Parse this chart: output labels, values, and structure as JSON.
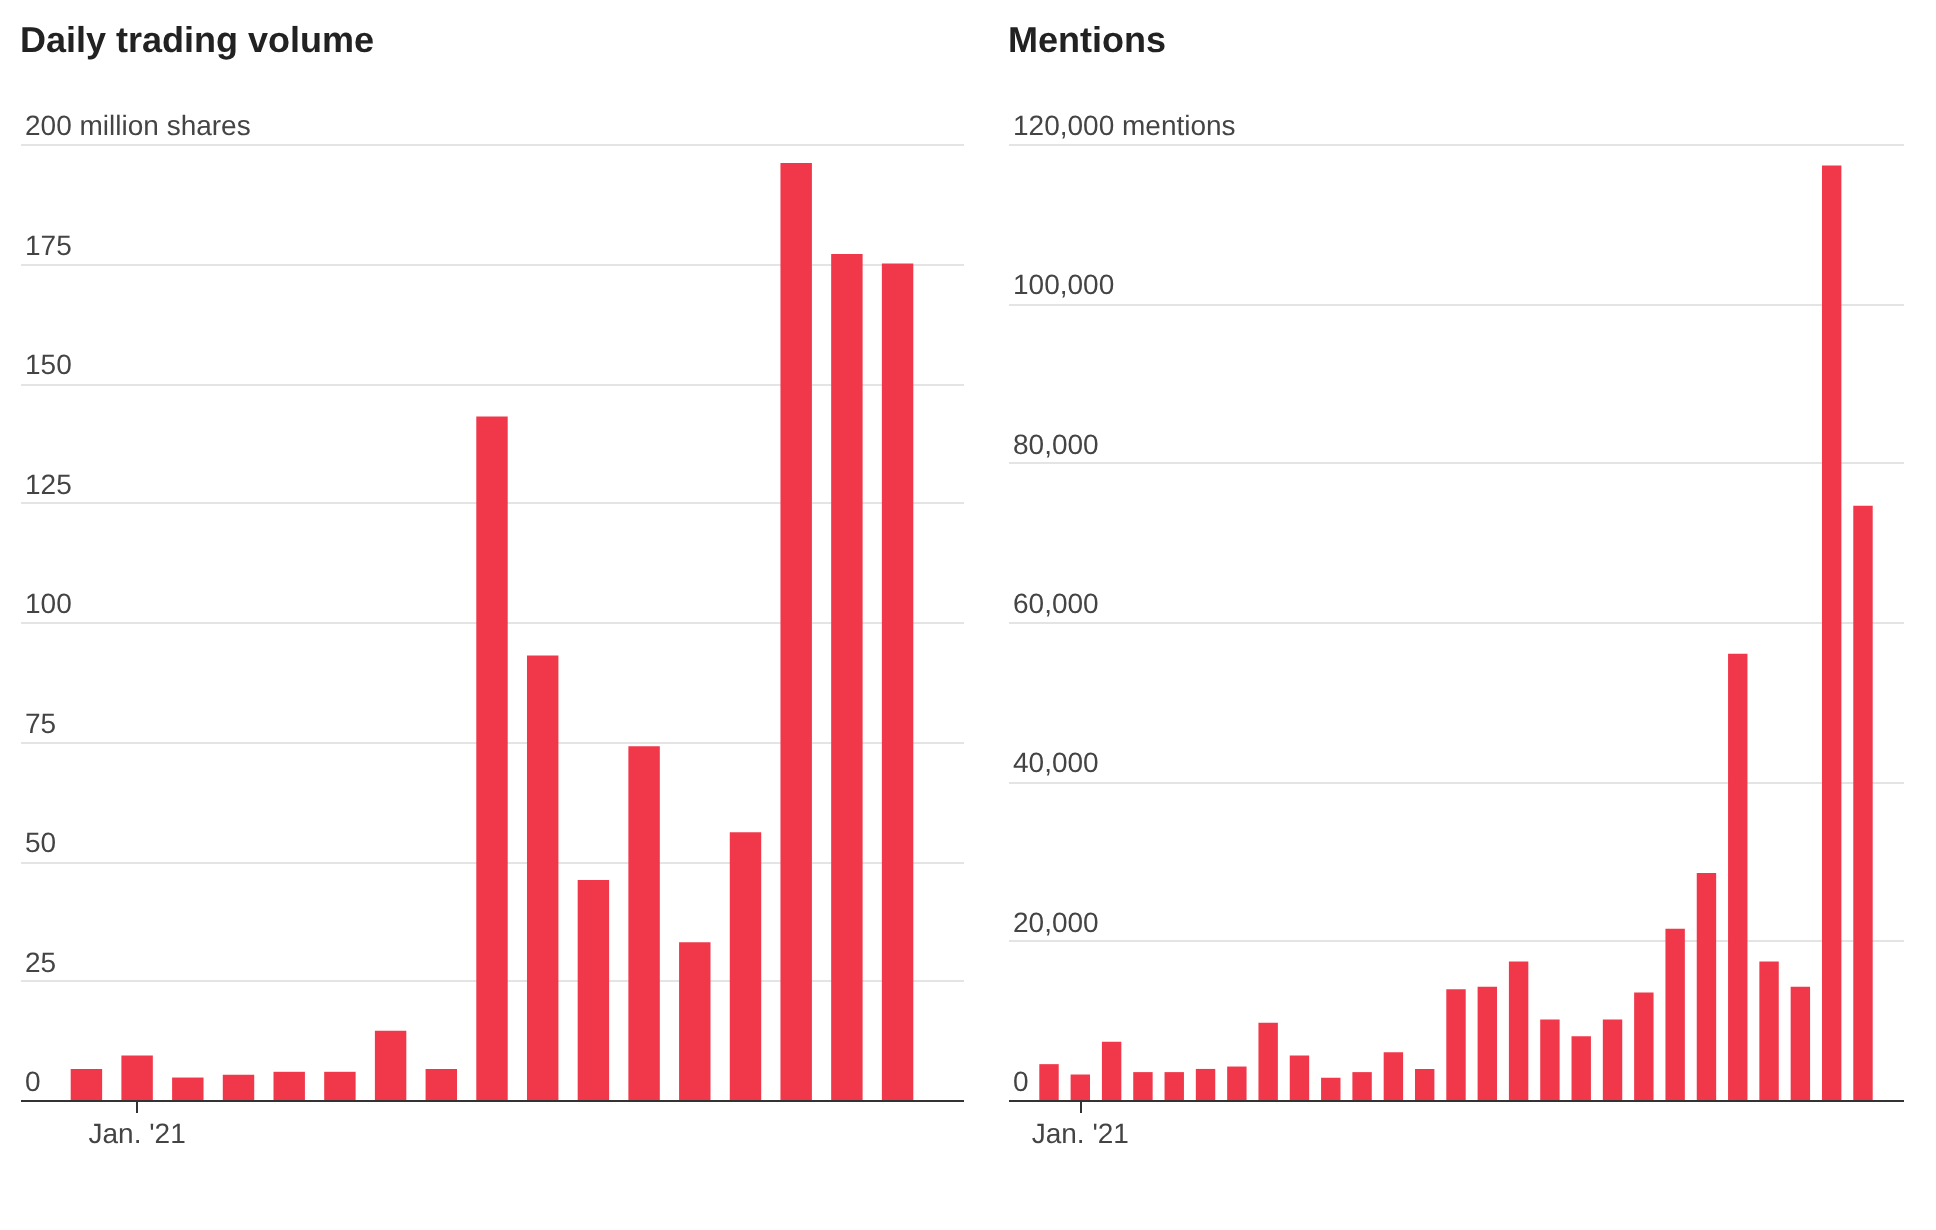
{
  "chart_data": [
    {
      "type": "bar",
      "title": "Daily trading volume",
      "categories": [
        null,
        "Jan. '21",
        null,
        null,
        null,
        null,
        null,
        null,
        null,
        null,
        null,
        null,
        null,
        null,
        null,
        null,
        null
      ],
      "values": [
        6.5,
        9.3,
        4.7,
        5.3,
        5.9,
        5.9,
        14.5,
        6.5,
        143,
        93,
        46,
        74,
        33,
        56,
        196,
        177,
        175
      ],
      "color": "#f0384a",
      "ylim": [
        0,
        200
      ],
      "yticks": [
        0,
        25,
        50,
        75,
        100,
        125,
        150,
        175,
        {
          "value": 200,
          "label": "200 million shares"
        }
      ],
      "grid": "y"
    },
    {
      "type": "bar",
      "title": "Mentions",
      "categories": [
        null,
        "Jan. '21",
        null,
        null,
        null,
        null,
        null,
        null,
        null,
        null,
        null,
        null,
        null,
        null,
        null,
        null,
        null,
        null,
        null,
        null,
        null,
        null,
        null,
        null,
        null,
        null,
        null
      ],
      "values": [
        4500,
        3200,
        7300,
        3500,
        3500,
        3900,
        4200,
        9700,
        5600,
        2800,
        3500,
        6000,
        3900,
        13900,
        14200,
        17400,
        10100,
        8000,
        10100,
        13500,
        21500,
        28500,
        56000,
        17400,
        14200,
        117300,
        74600
      ],
      "color": "#f0384a",
      "ylim": [
        0,
        120000
      ],
      "yticks": [
        0,
        {
          "value": 20000,
          "label": "20,000"
        },
        {
          "value": 40000,
          "label": "40,000"
        },
        {
          "value": 60000,
          "label": "60,000"
        },
        {
          "value": 80000,
          "label": "80,000"
        },
        {
          "value": 100000,
          "label": "100,000"
        },
        {
          "value": 120000,
          "label": "120,000 mentions"
        }
      ],
      "grid": "y"
    }
  ]
}
